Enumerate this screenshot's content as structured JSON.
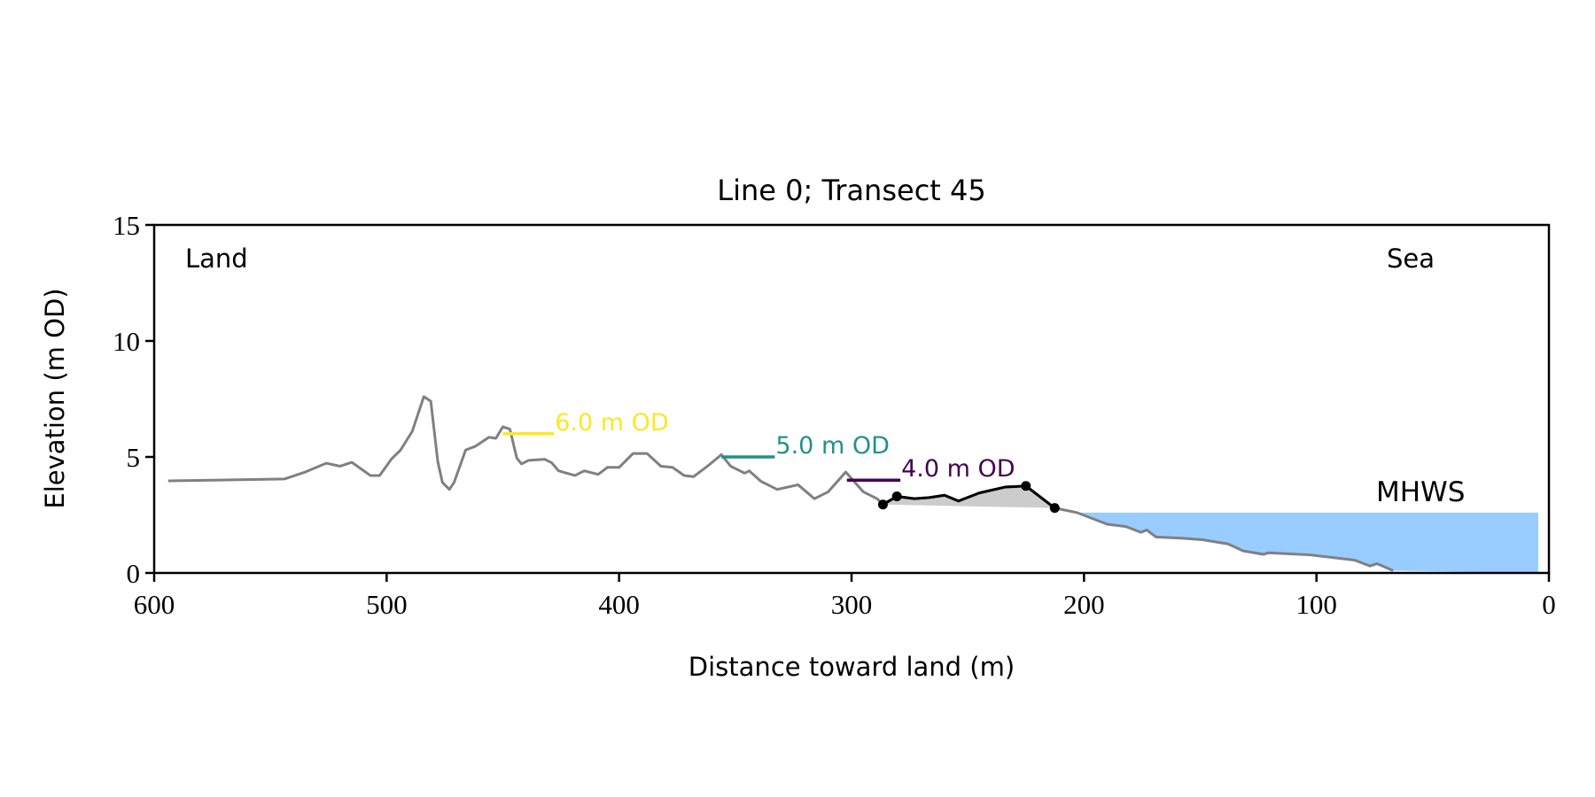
{
  "chart_data": {
    "type": "line",
    "title": "Line 0; Transect 45",
    "xlabel": "Distance toward land (m)",
    "ylabel": "Elevation (m OD)",
    "xlim": [
      600,
      0
    ],
    "ylim": [
      0,
      15
    ],
    "xticks": [
      "600",
      "500",
      "400",
      "300",
      "200",
      "100",
      "0"
    ],
    "xtick_values": [
      600,
      500,
      400,
      300,
      200,
      100,
      0
    ],
    "yticks": [
      "0",
      "5",
      "10",
      "15"
    ],
    "ytick_values": [
      0,
      5,
      10,
      15
    ],
    "grid": false,
    "annotations": {
      "land": "Land",
      "sea": "Sea",
      "mhws_label": "MHWS"
    },
    "mhws": {
      "elevation": 2.6,
      "from_distance": 202.6,
      "to_distance": 4.6,
      "color": "#99ccff",
      "label_color": "#6699cc"
    },
    "profile": {
      "color": "#808080",
      "x": [
        594,
        544,
        535,
        526,
        520,
        515,
        507,
        503,
        498,
        494,
        489,
        484,
        481,
        478,
        476,
        473,
        471,
        466,
        462,
        456,
        453,
        450,
        447,
        444,
        442,
        439,
        432,
        429,
        426,
        419,
        415,
        409,
        405,
        400,
        394,
        388,
        382,
        377,
        372,
        368,
        362,
        356,
        352,
        346,
        344,
        339,
        332,
        323,
        316,
        310,
        302.5,
        295,
        289,
        286.5,
        280.5,
        273,
        266.6,
        260,
        254,
        245,
        234,
        225,
        212.6,
        203,
        190,
        182,
        175.5,
        173,
        169,
        158,
        149,
        138,
        131.5,
        122.8,
        120.6,
        103,
        90,
        83.5,
        77,
        74,
        67
      ],
      "y": [
        3.97,
        4.05,
        4.35,
        4.73,
        4.6,
        4.77,
        4.2,
        4.2,
        4.9,
        5.3,
        6.1,
        7.6,
        7.4,
        4.8,
        3.9,
        3.6,
        3.9,
        5.3,
        5.45,
        5.85,
        5.8,
        6.3,
        6.2,
        4.95,
        4.7,
        4.85,
        4.9,
        4.75,
        4.4,
        4.2,
        4.4,
        4.25,
        4.55,
        4.55,
        5.15,
        5.15,
        4.6,
        4.55,
        4.2,
        4.15,
        4.6,
        5.1,
        4.6,
        4.3,
        4.4,
        3.95,
        3.6,
        3.8,
        3.2,
        3.5,
        4.35,
        3.5,
        3.2,
        2.95,
        3.3,
        3.2,
        3.25,
        3.35,
        3.1,
        3.45,
        3.7,
        3.75,
        2.8,
        2.6,
        2.1,
        2.0,
        1.75,
        1.85,
        1.55,
        1.5,
        1.43,
        1.25,
        0.95,
        0.8,
        0.87,
        0.78,
        0.63,
        0.55,
        0.3,
        0.4,
        0.1
      ]
    },
    "highlight": {
      "color": "#000000",
      "fill_color": "#cccccc",
      "x": [
        286.5,
        280.5,
        273,
        266.6,
        260,
        254,
        245,
        234,
        225,
        212.6
      ],
      "y": [
        2.95,
        3.3,
        3.2,
        3.25,
        3.35,
        3.1,
        3.45,
        3.7,
        3.75,
        2.8
      ],
      "marker_points": [
        [
          286.5,
          2.95
        ],
        [
          280.5,
          3.3
        ],
        [
          225,
          3.75
        ],
        [
          212.6,
          2.8
        ]
      ]
    },
    "contours": [
      {
        "label": "6.0 m OD",
        "elevation": 6.0,
        "x_start": 450,
        "x_end": 428,
        "color": "#fde725"
      },
      {
        "label": "5.0 m OD",
        "elevation": 5.0,
        "x_start": 356,
        "x_end": 333,
        "color": "#21918c"
      },
      {
        "label": "4.0 m OD",
        "elevation": 4.0,
        "x_start": 302,
        "x_end": 279,
        "color": "#440154"
      }
    ]
  }
}
